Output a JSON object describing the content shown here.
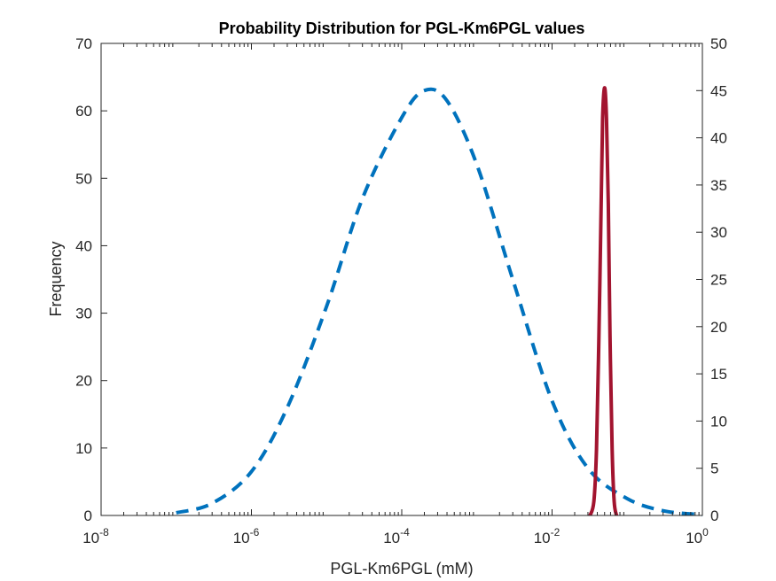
{
  "chart_data": {
    "type": "line",
    "title": "Probability Distribution for PGL-Km6PGL values",
    "xlabel": "PGL-Km6PGL (mM)",
    "ylabel": "Frequency",
    "x_scale": "log",
    "xlim": [
      1e-08,
      1
    ],
    "ylim_left": [
      0,
      70
    ],
    "ylim_right": [
      0,
      50
    ],
    "x_ticks": [
      {
        "base": "10",
        "exp": "-8"
      },
      {
        "base": "10",
        "exp": "-6"
      },
      {
        "base": "10",
        "exp": "-4"
      },
      {
        "base": "10",
        "exp": "-2"
      },
      {
        "base": "10",
        "exp": "0"
      }
    ],
    "y_ticks_left": [
      "0",
      "10",
      "20",
      "30",
      "40",
      "50",
      "60",
      "70"
    ],
    "y_ticks_right": [
      "0",
      "5",
      "10",
      "15",
      "20",
      "25",
      "30",
      "35",
      "40",
      "45",
      "50"
    ],
    "grid": false,
    "series": [
      {
        "axis": "left",
        "style": "dashed",
        "color": "#0072BD",
        "x": [
          1e-07,
          3e-07,
          1e-06,
          3e-06,
          1e-05,
          3e-05,
          0.0001,
          0.0002,
          0.0004,
          0.001,
          0.003,
          0.01,
          0.03,
          0.1,
          0.3,
          1
        ],
        "y": [
          0.4,
          1.8,
          6.5,
          16,
          31,
          47,
          59,
          63,
          61.5,
          52,
          35,
          17,
          7,
          2.5,
          0.7,
          0.1
        ]
      },
      {
        "axis": "right",
        "style": "solid",
        "color": "#A2142F",
        "x": [
          0.032,
          0.036,
          0.039,
          0.042,
          0.045,
          0.047,
          0.05,
          0.053,
          0.056,
          0.059,
          0.063,
          0.067,
          0.072
        ],
        "y": [
          0,
          1.5,
          7,
          19,
          33,
          42,
          45.3,
          42,
          33,
          19,
          7,
          1.5,
          0
        ]
      }
    ]
  }
}
